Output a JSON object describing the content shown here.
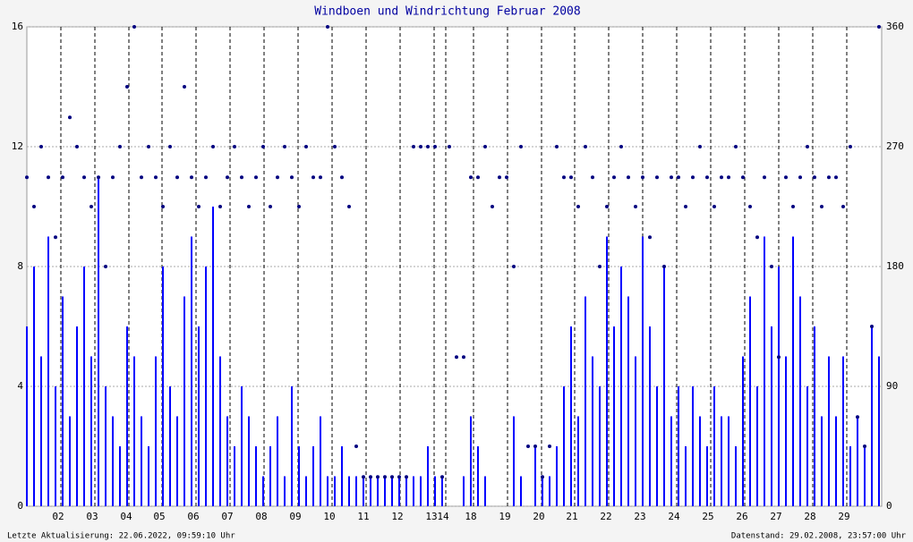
{
  "chart_data": {
    "type": "bar_scatter",
    "title": "Windboen und Windrichtung Februar 2008",
    "footer_left": "Letzte Aktualisierung: 22.06.2022, 09:59:10 Uhr",
    "footer_right": "Datenstand: 29.02.2008, 23:57:00 Uhr",
    "x": [
      0,
      8,
      16,
      24,
      32,
      40,
      48,
      56,
      64,
      72,
      80,
      88,
      96,
      104,
      112,
      120,
      128,
      136,
      144,
      152,
      160,
      168,
      176,
      184,
      192,
      200,
      208,
      216,
      224,
      232,
      240,
      248,
      256,
      264,
      272,
      280,
      288,
      296,
      304,
      312,
      320,
      328,
      336,
      344,
      352,
      360,
      368,
      376,
      384,
      392,
      400,
      408,
      416,
      424,
      432,
      440,
      448,
      456,
      464,
      472,
      480,
      488,
      496,
      504,
      512,
      520,
      528,
      536,
      544,
      552,
      560,
      568,
      576,
      584,
      592,
      600,
      608,
      616,
      624,
      632,
      640,
      648,
      656,
      664,
      672,
      680,
      688,
      696,
      704,
      712,
      720,
      728,
      736,
      744,
      752,
      760,
      768,
      776,
      784,
      792,
      800,
      808,
      816,
      824,
      832,
      840,
      848,
      856,
      864,
      872,
      880,
      888,
      896,
      904,
      912,
      920,
      928,
      936,
      944,
      952
    ],
    "xlim": [
      0,
      955
    ],
    "xticks": [
      {
        "value": 38,
        "label": "02"
      },
      {
        "value": 76,
        "label": "03"
      },
      {
        "value": 114,
        "label": "04"
      },
      {
        "value": 151,
        "label": "05"
      },
      {
        "value": 189,
        "label": "06"
      },
      {
        "value": 227,
        "label": "07"
      },
      {
        "value": 265,
        "label": "08"
      },
      {
        "value": 303,
        "label": "09"
      },
      {
        "value": 341,
        "label": "10"
      },
      {
        "value": 379,
        "label": "11"
      },
      {
        "value": 417,
        "label": "12"
      },
      {
        "value": 455,
        "label": "13"
      },
      {
        "value": 468,
        "label": "14"
      },
      {
        "value": 499,
        "label": "18"
      },
      {
        "value": 537,
        "label": "19"
      },
      {
        "value": 575,
        "label": "20"
      },
      {
        "value": 612,
        "label": "21"
      },
      {
        "value": 650,
        "label": "22"
      },
      {
        "value": 688,
        "label": "23"
      },
      {
        "value": 726,
        "label": "24"
      },
      {
        "value": 764,
        "label": "25"
      },
      {
        "value": 802,
        "label": "26"
      },
      {
        "value": 840,
        "label": "27"
      },
      {
        "value": 878,
        "label": "28"
      },
      {
        "value": 916,
        "label": "29"
      }
    ],
    "ylim": [
      0,
      16
    ],
    "yticks": [
      0,
      4,
      8,
      12,
      16
    ],
    "y2lim": [
      0,
      360
    ],
    "y2ticks": [
      0,
      90,
      180,
      270,
      360
    ],
    "grid": true,
    "series": [
      {
        "type": "bar",
        "color": "#0000ff",
        "values": [
          6,
          8,
          5,
          9,
          4,
          7,
          3,
          6,
          8,
          5,
          11,
          4,
          3,
          2,
          6,
          5,
          3,
          2,
          5,
          8,
          4,
          3,
          7,
          9,
          6,
          8,
          10,
          5,
          3,
          2,
          4,
          3,
          2,
          1,
          2,
          3,
          1,
          4,
          2,
          1,
          2,
          3,
          1,
          1,
          2,
          1,
          1,
          1,
          1,
          1,
          1,
          1,
          1,
          1,
          1,
          1,
          2,
          1,
          1,
          0,
          0,
          1,
          3,
          2,
          1,
          0,
          0,
          0,
          3,
          1,
          0,
          2,
          1,
          1,
          2,
          4,
          6,
          3,
          7,
          5,
          4,
          9,
          6,
          8,
          7,
          5,
          9,
          6,
          4,
          8,
          3,
          4,
          2,
          4,
          3,
          2,
          4,
          3,
          3,
          2,
          5,
          7,
          4,
          9,
          6,
          8,
          5,
          9,
          7,
          4,
          6,
          3,
          5,
          3,
          5,
          2,
          3,
          2,
          6,
          5
        ]
      },
      {
        "type": "scatter",
        "axis": "y2",
        "color": "#000080",
        "values": [
          247,
          225,
          270,
          247,
          202,
          247,
          292,
          270,
          247,
          225,
          247,
          180,
          247,
          270,
          315,
          360,
          247,
          270,
          247,
          225,
          270,
          247,
          315,
          247,
          225,
          247,
          270,
          225,
          247,
          270,
          247,
          225,
          247,
          270,
          225,
          247,
          270,
          247,
          225,
          270,
          247,
          247,
          360,
          270,
          247,
          225,
          45,
          22,
          22,
          22,
          22,
          22,
          22,
          22,
          270,
          270,
          270,
          270,
          22,
          270,
          112,
          112,
          247,
          247,
          270,
          225,
          247,
          247,
          180,
          270,
          45,
          45,
          22,
          45,
          270,
          247,
          247,
          225,
          270,
          247,
          180,
          225,
          247,
          270,
          247,
          225,
          247,
          202,
          247,
          180,
          247,
          247,
          225,
          247,
          270,
          247,
          225,
          247,
          247,
          270,
          247,
          225,
          202,
          247,
          180,
          112,
          247,
          225,
          247,
          270,
          247,
          225,
          247,
          247,
          225,
          270,
          67,
          45,
          135,
          360
        ]
      }
    ]
  }
}
